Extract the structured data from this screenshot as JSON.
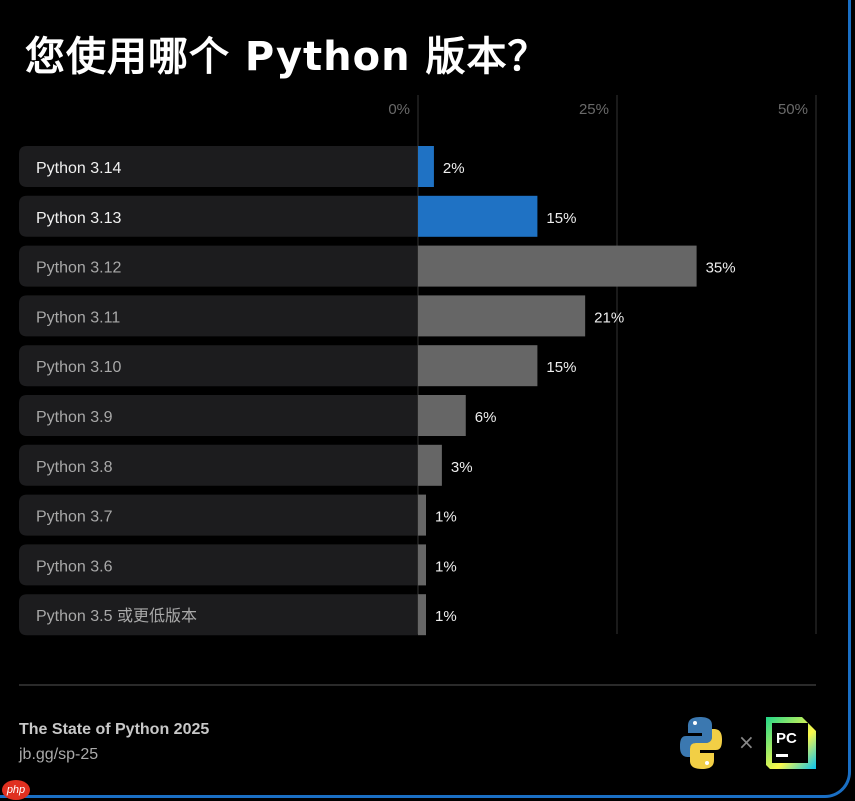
{
  "title": "您使用哪个 Python 版本？",
  "chart_data": {
    "type": "bar",
    "orientation": "horizontal",
    "categories": [
      "Python 3.14",
      "Python 3.13",
      "Python 3.12",
      "Python 3.11",
      "Python 3.10",
      "Python 3.9",
      "Python 3.8",
      "Python 3.7",
      "Python 3.6",
      "Python 3.5 或更低版本"
    ],
    "values": [
      2,
      15,
      35,
      21,
      15,
      6,
      3,
      1,
      1,
      1
    ],
    "data_labels": [
      "2%",
      "15%",
      "35%",
      "21%",
      "15%",
      "6%",
      "3%",
      "1%",
      "1%",
      "1%"
    ],
    "highlighted": [
      true,
      true,
      false,
      false,
      false,
      false,
      false,
      false,
      false,
      false
    ],
    "xticks": [
      0,
      25,
      50
    ],
    "xtick_labels": [
      "0%",
      "25%",
      "50%"
    ],
    "xlim": [
      0,
      50
    ],
    "grid": true,
    "colors": {
      "highlight": "#1f72c4",
      "default": "#666666",
      "label_bg": "#1c1c1e"
    }
  },
  "footer": {
    "source": "The State of Python 2025",
    "url": "jb.gg/sp-25",
    "separator": "×",
    "logo_pycharm_text": "PC"
  },
  "badge": "php"
}
